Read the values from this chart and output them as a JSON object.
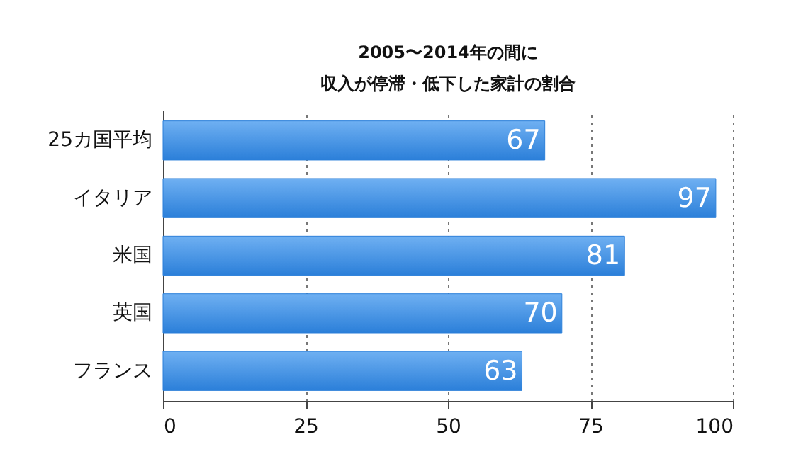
{
  "chart_data": {
    "type": "bar",
    "orientation": "horizontal",
    "title": "2005〜2014年の間に",
    "subtitle": "収入が停滞・低下した家計の割合",
    "categories": [
      "25カ国平均",
      "イタリア",
      "米国",
      "英国",
      "フランス"
    ],
    "values": [
      67,
      97,
      81,
      70,
      63
    ],
    "color": "#2b7fd9",
    "xlim": [
      0,
      100
    ],
    "xticks": [
      0,
      25,
      50,
      75,
      100
    ],
    "grid": "x",
    "data_labels": true
  }
}
